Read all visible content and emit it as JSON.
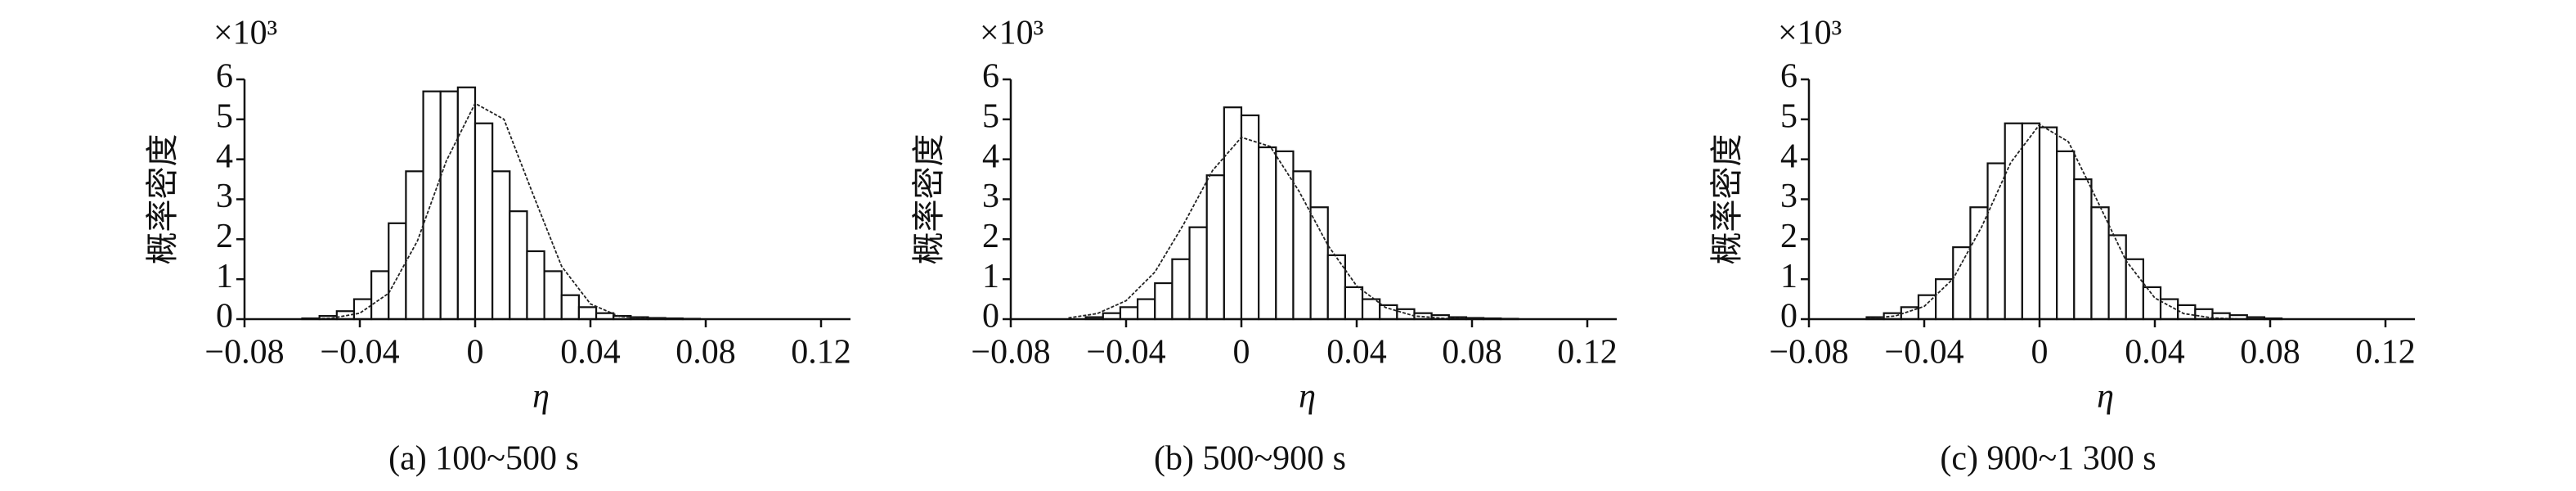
{
  "chart_data": [
    {
      "type": "histogram",
      "title": "(a) 100~500 s",
      "xlabel": "η",
      "ylabel": "概率密度",
      "y_multiplier": "×10³",
      "bins": [
        -0.06,
        -0.054,
        -0.048,
        -0.042,
        -0.036,
        -0.03,
        -0.024,
        -0.018,
        -0.012,
        -0.006,
        0,
        0.006,
        0.012,
        0.018,
        0.024,
        0.03,
        0.036,
        0.042,
        0.048,
        0.054,
        0.06,
        0.066,
        0.072,
        0.078
      ],
      "values": [
        0.02,
        0.08,
        0.2,
        0.5,
        1.2,
        2.4,
        3.7,
        5.7,
        5.7,
        5.8,
        4.9,
        3.7,
        2.7,
        1.7,
        1.2,
        0.6,
        0.3,
        0.15,
        0.08,
        0.05,
        0.03,
        0.02,
        0.01
      ],
      "curve": {
        "x": [
          -0.06,
          -0.05,
          -0.04,
          -0.03,
          -0.02,
          -0.01,
          0,
          0.01,
          0.02,
          0.03,
          0.04,
          0.05,
          0.06,
          0.07,
          0.08
        ],
        "y": [
          0,
          0.02,
          0.15,
          0.65,
          1.96,
          3.96,
          5.4,
          5.0,
          3.14,
          1.32,
          0.38,
          0.07,
          0.01,
          0,
          0
        ]
      },
      "color": "#ffffff",
      "xlim": [
        -0.08,
        0.12
      ],
      "xticks": [
        {
          "value": -0.08,
          "label": "−0.08"
        },
        {
          "value": -0.04,
          "label": "−0.04"
        },
        0,
        0.04,
        0.08,
        0.12
      ],
      "ylim": [
        0,
        6
      ],
      "yticks": [
        0,
        1,
        2,
        3,
        4,
        5,
        6
      ]
    },
    {
      "type": "histogram",
      "title": "(b) 500~900 s",
      "xlabel": "η",
      "ylabel": "概率密度",
      "y_multiplier": "×10³",
      "bins": [
        -0.054,
        -0.048,
        -0.042,
        -0.036,
        -0.03,
        -0.024,
        -0.018,
        -0.012,
        -0.006,
        0,
        0.006,
        0.012,
        0.018,
        0.024,
        0.03,
        0.036,
        0.042,
        0.048,
        0.054,
        0.06,
        0.066,
        0.072,
        0.078,
        0.084,
        0.09,
        0.096
      ],
      "values": [
        0.05,
        0.15,
        0.3,
        0.5,
        0.9,
        1.5,
        2.3,
        3.6,
        5.3,
        5.1,
        4.3,
        4.2,
        3.7,
        2.8,
        1.6,
        0.8,
        0.5,
        0.35,
        0.25,
        0.15,
        0.1,
        0.05,
        0.03,
        0.02,
        0.01
      ],
      "curve": {
        "x": [
          -0.06,
          -0.05,
          -0.04,
          -0.03,
          -0.02,
          -0.01,
          0,
          0.01,
          0.02,
          0.03,
          0.04,
          0.05,
          0.06,
          0.07,
          0.08,
          0.09
        ],
        "y": [
          0.03,
          0.14,
          0.46,
          1.18,
          2.38,
          3.72,
          4.55,
          4.32,
          3.2,
          1.85,
          0.83,
          0.29,
          0.08,
          0.02,
          0,
          0
        ]
      },
      "color": "#ffffff",
      "xlim": [
        -0.08,
        0.12
      ],
      "xticks": [
        {
          "value": -0.08,
          "label": "−0.08"
        },
        {
          "value": -0.04,
          "label": "−0.04"
        },
        0,
        0.04,
        0.08,
        0.12
      ],
      "ylim": [
        0,
        6
      ],
      "yticks": [
        0,
        1,
        2,
        3,
        4,
        5,
        6
      ]
    },
    {
      "type": "histogram",
      "title": "(c) 900~1 300 s",
      "xlabel": "η",
      "ylabel": "概率密度",
      "y_multiplier": "×10³",
      "bins": [
        -0.06,
        -0.054,
        -0.048,
        -0.042,
        -0.036,
        -0.03,
        -0.024,
        -0.018,
        -0.012,
        -0.006,
        0,
        0.006,
        0.012,
        0.018,
        0.024,
        0.03,
        0.036,
        0.042,
        0.048,
        0.054,
        0.06,
        0.066,
        0.072,
        0.078,
        0.084
      ],
      "values": [
        0.05,
        0.15,
        0.3,
        0.6,
        1.0,
        1.8,
        2.8,
        3.9,
        4.9,
        4.9,
        4.8,
        4.2,
        3.5,
        2.8,
        2.1,
        1.5,
        0.8,
        0.5,
        0.35,
        0.25,
        0.15,
        0.1,
        0.05,
        0.02
      ],
      "curve": {
        "x": [
          -0.06,
          -0.05,
          -0.04,
          -0.03,
          -0.02,
          -0.01,
          0,
          0.01,
          0.02,
          0.03,
          0.04,
          0.05,
          0.06,
          0.07,
          0.08
        ],
        "y": [
          0.01,
          0.08,
          0.32,
          1.01,
          2.32,
          3.92,
          4.87,
          4.44,
          2.97,
          1.46,
          0.53,
          0.14,
          0.03,
          0,
          0
        ]
      },
      "color": "#ffffff",
      "xlim": [
        -0.08,
        0.12
      ],
      "xticks": [
        {
          "value": -0.08,
          "label": "−0.08"
        },
        {
          "value": -0.04,
          "label": "−0.04"
        },
        0,
        0.04,
        0.08,
        0.12
      ],
      "ylim": [
        0,
        6
      ],
      "yticks": [
        0,
        1,
        2,
        3,
        4,
        5,
        6
      ]
    }
  ]
}
